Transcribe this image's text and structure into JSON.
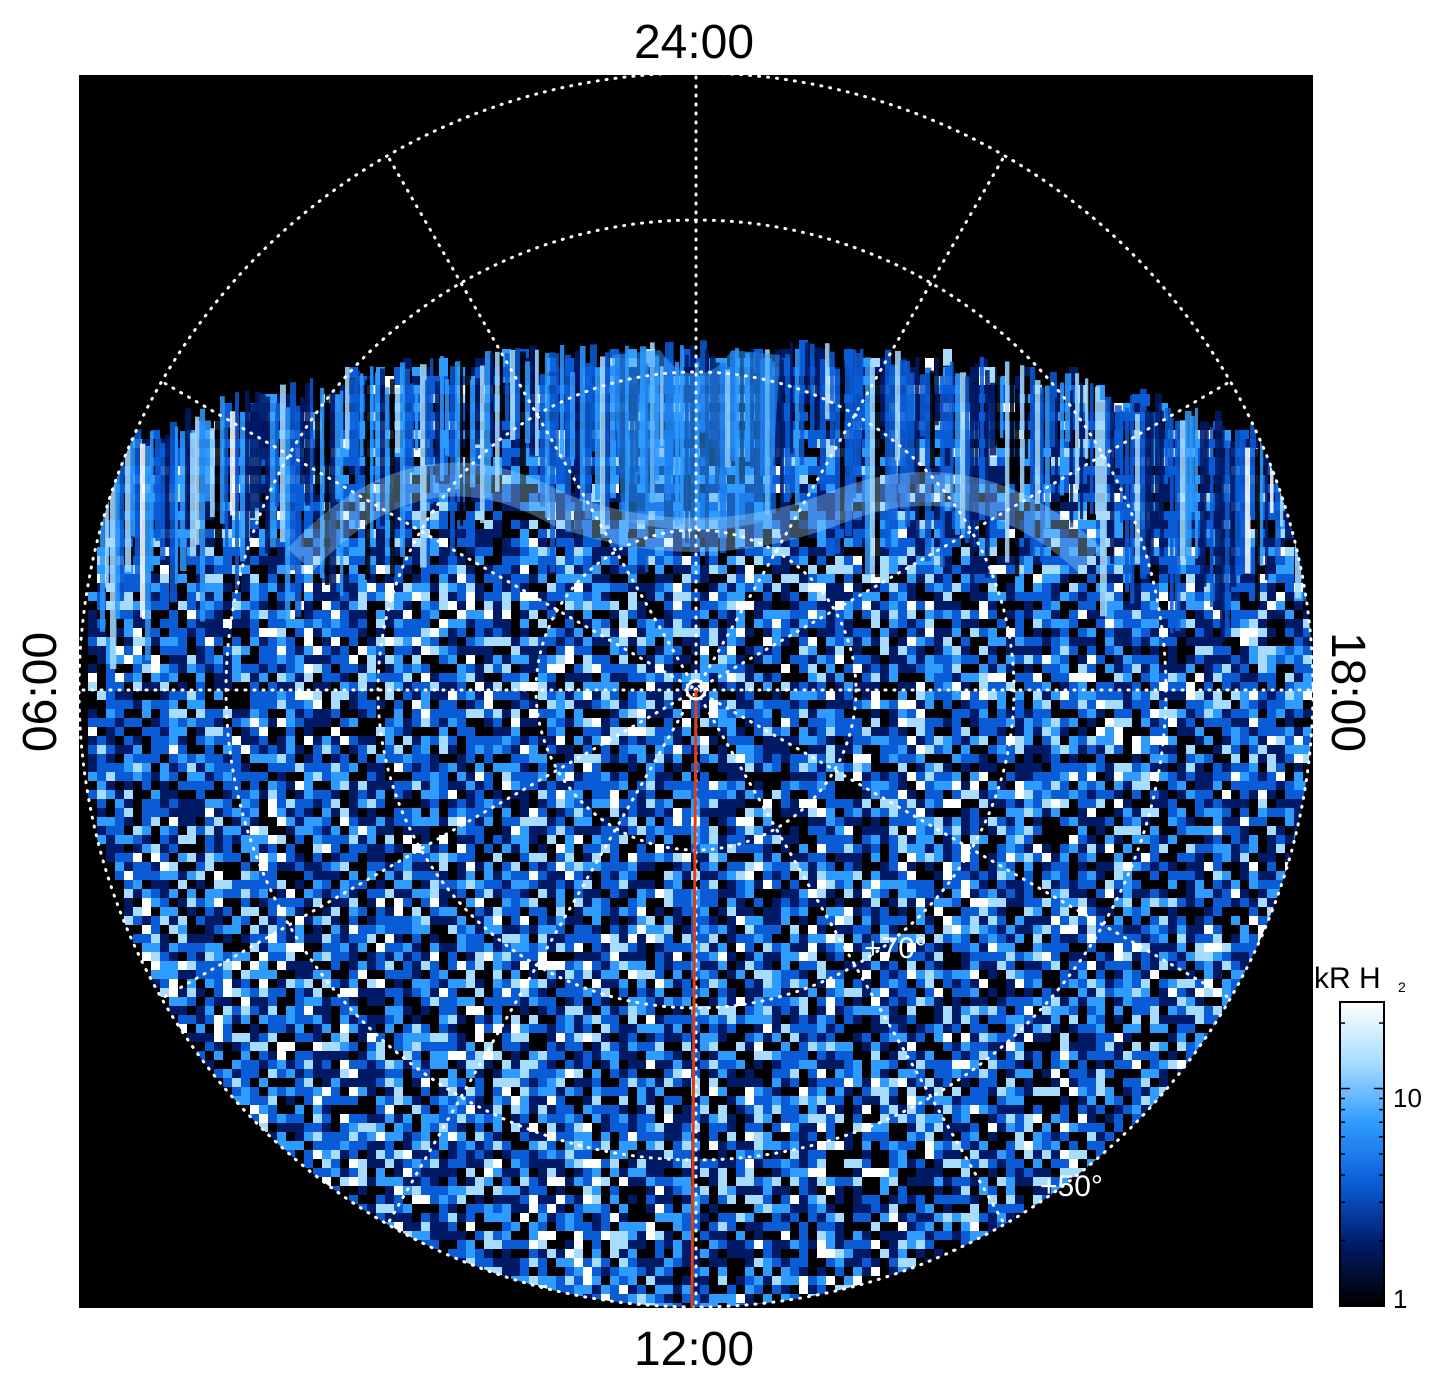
{
  "chart_data": {
    "type": "heatmap",
    "projection": "polar",
    "title": "",
    "local_time_labels": {
      "top": "24:00",
      "bottom": "12:00",
      "left": "06:00",
      "right": "18:00"
    },
    "latitude_labels": [
      "+70°",
      "+50°"
    ],
    "colorbar": {
      "label_main": "kR H",
      "label_sub": "2",
      "scale": "log",
      "range": [
        1,
        25
      ],
      "ticks": [
        1,
        10
      ],
      "tick_labels": [
        "1",
        "10"
      ],
      "colors": [
        "#000000",
        "#001a66",
        "#0a5cd6",
        "#2e9bff",
        "#a8dcff",
        "#ffffff"
      ]
    },
    "meridian_line": {
      "local_time": "12:00",
      "color": "#d9401a"
    },
    "grid": true
  }
}
